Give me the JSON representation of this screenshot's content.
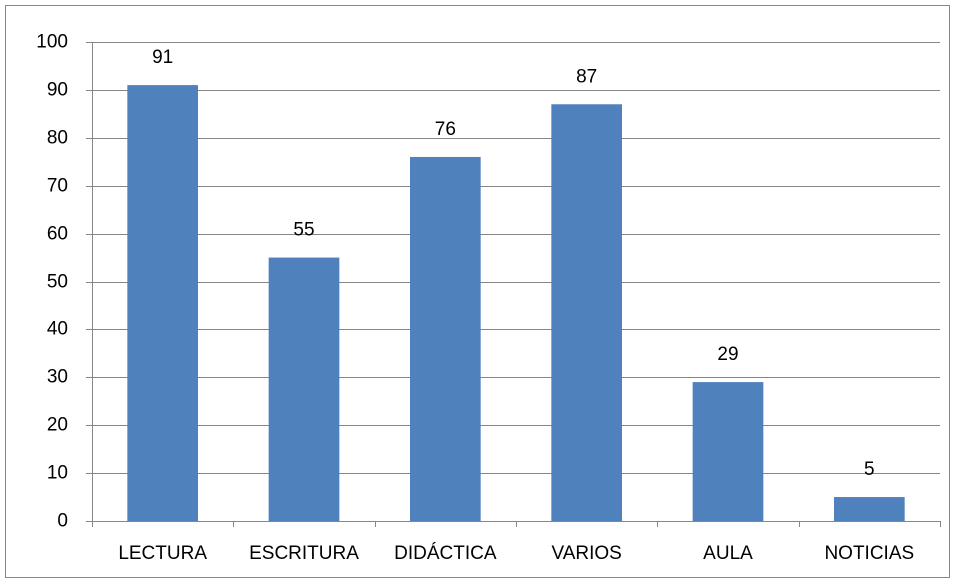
{
  "chart_data": {
    "type": "bar",
    "categories": [
      "LECTURA",
      "ESCRITURA",
      "DIDÁCTICA",
      "VARIOS",
      "AULA",
      "NOTICIAS"
    ],
    "values": [
      91,
      55,
      76,
      87,
      29,
      5
    ],
    "color": "#4f81bd",
    "ylim": [
      0,
      100
    ],
    "yticks": [
      0,
      10,
      20,
      30,
      40,
      50,
      60,
      70,
      80,
      90,
      100
    ],
    "grid": true
  }
}
